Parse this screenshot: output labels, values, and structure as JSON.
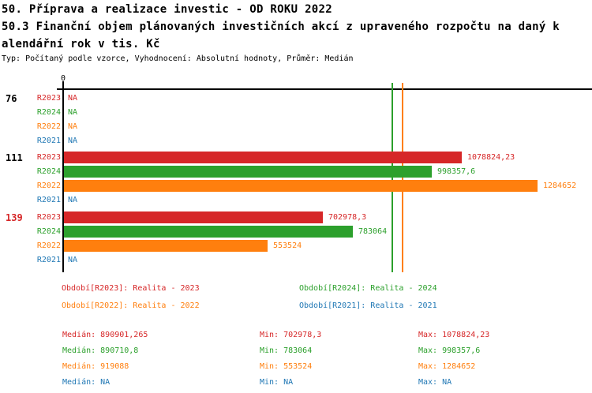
{
  "header": {
    "title": "50. Příprava a realizace investic - OD ROKU 2022",
    "subtitle_line1": "50.3 Finanční objem plánovaných investičních akcí z upraveného rozpočtu na daný k",
    "subtitle_line2": "alendářní rok v tis. Kč",
    "meta": "Typ: Počítaný podle vzorce, Vyhodnocení: Absolutní hodnoty, Průměr: Medián"
  },
  "colors": {
    "R2023": "#d62728",
    "R2024": "#2ca02c",
    "R2022": "#ff7f0e",
    "R2021": "#1f77b4",
    "axis": "#000000",
    "group_label_highlight": "#d62728",
    "group_label_default": "#000000"
  },
  "chart_data": {
    "type": "bar",
    "orientation": "horizontal",
    "unit": "tis. Kč",
    "x_axis": {
      "origin_label": "0",
      "min": 0,
      "implied_max": 1430000
    },
    "series_order": [
      "R2023",
      "R2024",
      "R2022",
      "R2021"
    ],
    "groups": [
      {
        "label": "76",
        "label_color": "#000000",
        "rows": [
          {
            "series": "R2023",
            "value": null,
            "display": "NA"
          },
          {
            "series": "R2024",
            "value": null,
            "display": "NA"
          },
          {
            "series": "R2022",
            "value": null,
            "display": "NA"
          },
          {
            "series": "R2021",
            "value": null,
            "display": "NA"
          }
        ]
      },
      {
        "label": "111",
        "label_color": "#000000",
        "rows": [
          {
            "series": "R2023",
            "value": 1078824.23,
            "display": "1078824,23"
          },
          {
            "series": "R2024",
            "value": 998357.6,
            "display": "998357,6"
          },
          {
            "series": "R2022",
            "value": 1284652,
            "display": "1284652"
          },
          {
            "series": "R2021",
            "value": null,
            "display": "NA"
          }
        ]
      },
      {
        "label": "139",
        "label_color": "#d62728",
        "rows": [
          {
            "series": "R2023",
            "value": 702978.3,
            "display": "702978,3"
          },
          {
            "series": "R2024",
            "value": 783064,
            "display": "783064"
          },
          {
            "series": "R2022",
            "value": 553524,
            "display": "553524"
          },
          {
            "series": "R2021",
            "value": null,
            "display": "NA"
          }
        ]
      }
    ],
    "median_lines": [
      {
        "series": "R2023",
        "value": 890901.265
      },
      {
        "series": "R2024",
        "value": 890710.8
      },
      {
        "series": "R2022",
        "value": 919088
      }
    ]
  },
  "legend": [
    {
      "series": "R2023",
      "label": "Období[R2023]: Realita - 2023"
    },
    {
      "series": "R2024",
      "label": "Období[R2024]: Realita - 2024"
    },
    {
      "series": "R2022",
      "label": "Období[R2022]: Realita - 2022"
    },
    {
      "series": "R2021",
      "label": "Období[R2021]: Realita - 2021"
    }
  ],
  "stats": [
    {
      "series": "R2023",
      "median": "Medián: 890901,265",
      "min": "Min: 702978,3",
      "max": "Max: 1078824,23"
    },
    {
      "series": "R2024",
      "median": "Medián: 890710,8",
      "min": "Min: 783064",
      "max": "Max: 998357,6"
    },
    {
      "series": "R2022",
      "median": "Medián: 919088",
      "min": "Min: 553524",
      "max": "Max: 1284652"
    },
    {
      "series": "R2021",
      "median": "Medián: NA",
      "min": "Min: NA",
      "max": "Max: NA"
    }
  ]
}
